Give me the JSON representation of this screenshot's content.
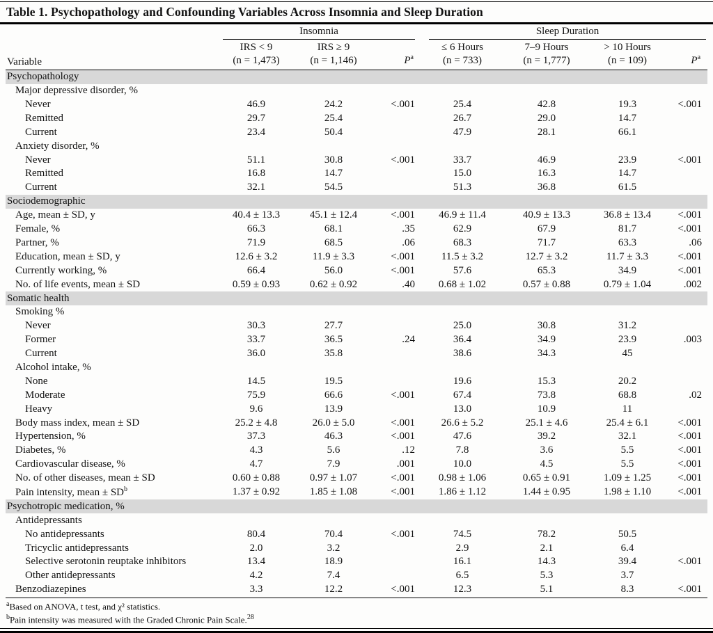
{
  "title": "Table 1. Psychopathology and Confounding Variables Across Insomnia and Sleep Duration",
  "header": {
    "variable_label": "Variable",
    "groups": [
      {
        "label": "Insomnia"
      },
      {
        "label": "Sleep Duration"
      }
    ],
    "columns": [
      {
        "label": "IRS < 9",
        "sublabel": "(n = 1,473)"
      },
      {
        "label": "IRS ≥ 9",
        "sublabel": "(n = 1,146)"
      },
      {
        "label": "P",
        "sup": "a"
      },
      {
        "label": "≤ 6 Hours",
        "sublabel": "(n = 733)"
      },
      {
        "label": "7–9 Hours",
        "sublabel": "(n = 1,777)"
      },
      {
        "label": "> 10 Hours",
        "sublabel": "(n = 109)"
      },
      {
        "label": "P",
        "sup": "a"
      }
    ]
  },
  "rows": [
    {
      "type": "section",
      "label": "Psychopathology"
    },
    {
      "type": "subheader",
      "indent": 1,
      "label": "Major depressive disorder, %"
    },
    {
      "type": "data",
      "indent": 2,
      "label": "Never",
      "values": [
        "46.9",
        "24.2",
        "<.001",
        "25.4",
        "42.8",
        "19.3",
        "<.001"
      ]
    },
    {
      "type": "data",
      "indent": 2,
      "label": "Remitted",
      "values": [
        "29.7",
        "25.4",
        "",
        "26.7",
        "29.0",
        "14.7",
        ""
      ]
    },
    {
      "type": "data",
      "indent": 2,
      "label": "Current",
      "values": [
        "23.4",
        "50.4",
        "",
        "47.9",
        "28.1",
        "66.1",
        ""
      ]
    },
    {
      "type": "subheader",
      "indent": 1,
      "label": "Anxiety disorder, %"
    },
    {
      "type": "data",
      "indent": 2,
      "label": "Never",
      "values": [
        "51.1",
        "30.8",
        "<.001",
        "33.7",
        "46.9",
        "23.9",
        "<.001"
      ]
    },
    {
      "type": "data",
      "indent": 2,
      "label": "Remitted",
      "values": [
        "16.8",
        "14.7",
        "",
        "15.0",
        "16.3",
        "14.7",
        ""
      ]
    },
    {
      "type": "data",
      "indent": 2,
      "label": "Current",
      "values": [
        "32.1",
        "54.5",
        "",
        "51.3",
        "36.8",
        "61.5",
        ""
      ]
    },
    {
      "type": "section",
      "label": "Sociodemographic"
    },
    {
      "type": "data",
      "indent": 1,
      "label": "Age, mean ± SD, y",
      "values": [
        "40.4 ± 13.3",
        "45.1 ± 12.4",
        "<.001",
        "46.9 ± 11.4",
        "40.9 ± 13.3",
        "36.8 ± 13.4",
        "<.001"
      ]
    },
    {
      "type": "data",
      "indent": 1,
      "label": "Female, %",
      "values": [
        "66.3",
        "68.1",
        ".35",
        "62.9",
        "67.9",
        "81.7",
        "<.001"
      ]
    },
    {
      "type": "data",
      "indent": 1,
      "label": "Partner, %",
      "values": [
        "71.9",
        "68.5",
        ".06",
        "68.3",
        "71.7",
        "63.3",
        ".06"
      ]
    },
    {
      "type": "data",
      "indent": 1,
      "label": "Education, mean ± SD, y",
      "values": [
        "12.6 ± 3.2",
        "11.9 ± 3.3",
        "<.001",
        "11.5 ± 3.2",
        "12.7 ± 3.2",
        "11.7 ± 3.3",
        "<.001"
      ]
    },
    {
      "type": "data",
      "indent": 1,
      "label": "Currently working, %",
      "values": [
        "66.4",
        "56.0",
        "<.001",
        "57.6",
        "65.3",
        "34.9",
        "<.001"
      ]
    },
    {
      "type": "data",
      "indent": 1,
      "label": "No. of life events, mean ± SD",
      "values": [
        "0.59 ± 0.93",
        "0.62 ± 0.92",
        ".40",
        "0.68 ± 1.02",
        "0.57 ± 0.88",
        "0.79 ± 1.04",
        ".002"
      ]
    },
    {
      "type": "section",
      "label": "Somatic health"
    },
    {
      "type": "subheader",
      "indent": 1,
      "label": "Smoking %"
    },
    {
      "type": "data",
      "indent": 2,
      "label": "Never",
      "values": [
        "30.3",
        "27.7",
        "",
        "25.0",
        "30.8",
        "31.2",
        ""
      ]
    },
    {
      "type": "data",
      "indent": 2,
      "label": "Former",
      "values": [
        "33.7",
        "36.5",
        ".24",
        "36.4",
        "34.9",
        "23.9",
        ".003"
      ]
    },
    {
      "type": "data",
      "indent": 2,
      "label": "Current",
      "values": [
        "36.0",
        "35.8",
        "",
        "38.6",
        "34.3",
        "45",
        ""
      ]
    },
    {
      "type": "subheader",
      "indent": 1,
      "label": "Alcohol intake, %"
    },
    {
      "type": "data",
      "indent": 2,
      "label": "None",
      "values": [
        "14.5",
        "19.5",
        "",
        "19.6",
        "15.3",
        "20.2",
        ""
      ]
    },
    {
      "type": "data",
      "indent": 2,
      "label": "Moderate",
      "values": [
        "75.9",
        "66.6",
        "<.001",
        "67.4",
        "73.8",
        "68.8",
        ".02"
      ]
    },
    {
      "type": "data",
      "indent": 2,
      "label": "Heavy",
      "values": [
        "9.6",
        "13.9",
        "",
        "13.0",
        "10.9",
        "11",
        ""
      ]
    },
    {
      "type": "data",
      "indent": 1,
      "label": "Body mass index, mean ± SD",
      "values": [
        "25.2 ± 4.8",
        "26.0 ± 5.0",
        "<.001",
        "26.6 ± 5.2",
        "25.1 ± 4.6",
        "25.4 ± 6.1",
        "<.001"
      ]
    },
    {
      "type": "data",
      "indent": 1,
      "label": "Hypertension, %",
      "values": [
        "37.3",
        "46.3",
        "<.001",
        "47.6",
        "39.2",
        "32.1",
        "<.001"
      ]
    },
    {
      "type": "data",
      "indent": 1,
      "label": "Diabetes, %",
      "values": [
        "4.3",
        "5.6",
        ".12",
        "7.8",
        "3.6",
        "5.5",
        "<.001"
      ]
    },
    {
      "type": "data",
      "indent": 1,
      "label": "Cardiovascular disease, %",
      "values": [
        "4.7",
        "7.9",
        ".001",
        "10.0",
        "4.5",
        "5.5",
        "<.001"
      ]
    },
    {
      "type": "data",
      "indent": 1,
      "label": "No. of other diseases, mean ± SD",
      "values": [
        "0.60 ± 0.88",
        "0.97 ± 1.07",
        "<.001",
        "0.98 ± 1.06",
        "0.65 ± 0.91",
        "1.09 ± 1.25",
        "<.001"
      ]
    },
    {
      "type": "data",
      "indent": 1,
      "label": "Pain intensity, mean ± SD",
      "label_sup": "b",
      "values": [
        "1.37 ± 0.92",
        "1.85 ± 1.08",
        "<.001",
        "1.86 ± 1.12",
        "1.44 ± 0.95",
        "1.98 ± 1.10",
        "<.001"
      ]
    },
    {
      "type": "section",
      "label": "Psychotropic medication, %"
    },
    {
      "type": "subheader",
      "indent": 1,
      "label": "Antidepressants"
    },
    {
      "type": "data",
      "indent": 2,
      "label": "No antidepressants",
      "values": [
        "80.4",
        "70.4",
        "<.001",
        "74.5",
        "78.2",
        "50.5",
        ""
      ]
    },
    {
      "type": "data",
      "indent": 2,
      "label": "Tricyclic antidepressants",
      "values": [
        "2.0",
        "3.2",
        "",
        "2.9",
        "2.1",
        "6.4",
        ""
      ]
    },
    {
      "type": "data",
      "indent": 2,
      "label": "Selective serotonin reuptake inhibitors",
      "values": [
        "13.4",
        "18.9",
        "",
        "16.1",
        "14.3",
        "39.4",
        "<.001"
      ]
    },
    {
      "type": "data",
      "indent": 2,
      "label": "Other antidepressants",
      "values": [
        "4.2",
        "7.4",
        "",
        "6.5",
        "5.3",
        "3.7",
        ""
      ]
    },
    {
      "type": "data",
      "indent": 1,
      "label": "Benzodiazepines",
      "values": [
        "3.3",
        "12.2",
        "<.001",
        "12.3",
        "5.1",
        "8.3",
        "<.001"
      ]
    }
  ],
  "footnotes": [
    {
      "sup": "a",
      "text": "Based on ANOVA, t test, and χ² statistics."
    },
    {
      "sup": "b",
      "text": "Pain intensity was measured with the Graded Chronic Pain Scale.",
      "ref": "28"
    }
  ]
}
